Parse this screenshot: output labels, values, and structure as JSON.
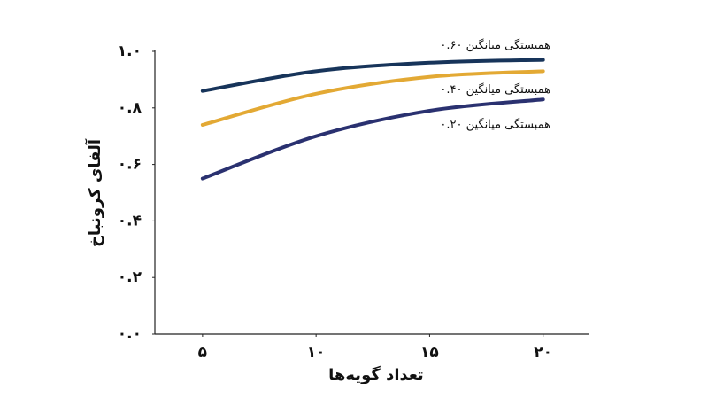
{
  "chart_data": {
    "type": "line",
    "xlabel": "تعداد گویه‌ها",
    "ylabel": "آلفای کرونباخ",
    "x": [
      5,
      10,
      15,
      20
    ],
    "series": [
      {
        "name": "همبستگی میانگین ۰.۶۰",
        "color": "#17345a",
        "values": [
          0.86,
          0.93,
          0.96,
          0.97
        ]
      },
      {
        "name": "همبستگی میانگین ۰.۴۰",
        "color": "#e3a934",
        "values": [
          0.74,
          0.85,
          0.91,
          0.93
        ]
      },
      {
        "name": "همبستگی میانگین ۰.۲۰",
        "color": "#2a3170",
        "values": [
          0.55,
          0.7,
          0.79,
          0.83
        ]
      }
    ],
    "xlim": [
      2.9,
      22
    ],
    "ylim": [
      0,
      1.0
    ],
    "xticks": [
      {
        "value": 5,
        "label": "۵"
      },
      {
        "value": 10,
        "label": "۱۰"
      },
      {
        "value": 15,
        "label": "۱۵"
      },
      {
        "value": 20,
        "label": "۲۰"
      }
    ],
    "yticks": [
      {
        "value": 0,
        "label": "۰.۰"
      },
      {
        "value": 0.2,
        "label": "۰.۲"
      },
      {
        "value": 0.4,
        "label": "۰.۴"
      },
      {
        "value": 0.6,
        "label": "۰.۶"
      },
      {
        "value": 0.8,
        "label": "۰.۸"
      },
      {
        "value": 1.0,
        "label": "۱.۰"
      }
    ]
  }
}
